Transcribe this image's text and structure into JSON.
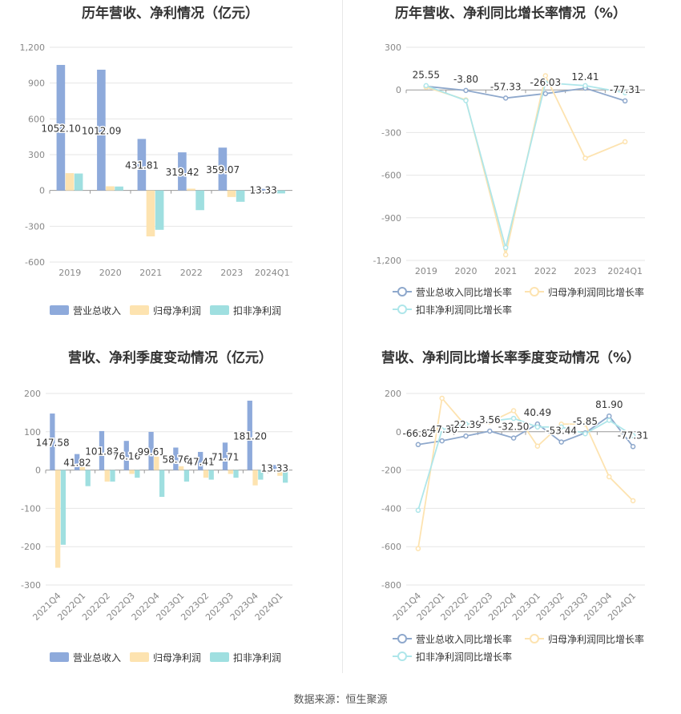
{
  "colors": {
    "revenue": "#8eaadb",
    "netprofit": "#fde3b0",
    "deducted": "#9fdfe0",
    "rev_line": "#8ea8cc",
    "np_line": "#fde3b0",
    "ded_line": "#aee6ea"
  },
  "footer": {
    "source": "数据来源：恒生聚源"
  },
  "chart_data": [
    {
      "id": "annual-amount",
      "type": "bar",
      "title": "历年营收、净利情况（亿元）",
      "categories": [
        "2019",
        "2020",
        "2021",
        "2022",
        "2023",
        "2024Q1"
      ],
      "ylim": [
        -600,
        1200
      ],
      "yticks": [
        1200,
        900,
        600,
        300,
        0,
        -300,
        -600
      ],
      "ytick_labels": [
        "1,200",
        "900",
        "600",
        "300",
        "0",
        "-300",
        "-600"
      ],
      "series": [
        {
          "name": "营业总收入",
          "values": [
            1052.1,
            1012.09,
            431.81,
            319.42,
            359.07,
            13.33
          ]
        },
        {
          "name": "归母净利润",
          "values": [
            145,
            35,
            -385,
            15,
            -55,
            -5
          ]
        },
        {
          "name": "扣非净利润",
          "values": [
            142,
            33,
            -330,
            -165,
            -95,
            -25
          ]
        }
      ],
      "data_labels": [
        "1052.10",
        "1012.09",
        "431.81",
        "319.42",
        "359.07",
        "13.33"
      ]
    },
    {
      "id": "annual-growth",
      "type": "line",
      "title": "历年营收、净利同比增长率情况（%）",
      "categories": [
        "2019",
        "2020",
        "2021",
        "2022",
        "2023",
        "2024Q1"
      ],
      "ylim": [
        -1200,
        300
      ],
      "yticks": [
        300,
        0,
        -300,
        -600,
        -900,
        -1200
      ],
      "ytick_labels": [
        "300",
        "0",
        "-300",
        "-600",
        "-900",
        "-1,200"
      ],
      "series": [
        {
          "name": "营业总收入同比增长率",
          "values": [
            25.55,
            -3.8,
            -57.33,
            -26.03,
            12.41,
            -77.31
          ]
        },
        {
          "name": "归母净利润同比增长率",
          "values": [
            20,
            -70,
            -1160,
            100,
            -480,
            -365
          ]
        },
        {
          "name": "扣非净利润同比增长率",
          "values": [
            30,
            -75,
            -1110,
            50,
            30,
            -20
          ]
        }
      ],
      "data_labels": [
        "25.55",
        "-3.80",
        "-57.33",
        "-26.03",
        "12.41",
        "-77.31"
      ]
    },
    {
      "id": "quarterly-amount",
      "type": "bar",
      "title": "营收、净利季度变动情况（亿元）",
      "categories": [
        "2021Q4",
        "2022Q1",
        "2022Q2",
        "2022Q3",
        "2022Q4",
        "2023Q1",
        "2023Q2",
        "2023Q3",
        "2023Q4",
        "2024Q1"
      ],
      "ylim": [
        -300,
        200
      ],
      "yticks": [
        200,
        100,
        0,
        -100,
        -200,
        -300
      ],
      "ytick_labels": [
        "200",
        "100",
        "0",
        "-100",
        "-200",
        "-300"
      ],
      "series": [
        {
          "name": "营业总收入",
          "values": [
            147.58,
            41.82,
            101.83,
            76.16,
            99.61,
            58.76,
            47.41,
            71.71,
            181.2,
            13.33
          ]
        },
        {
          "name": "归母净利润",
          "values": [
            -255,
            8,
            -30,
            -10,
            35,
            10,
            -20,
            -10,
            -40,
            -15
          ]
        },
        {
          "name": "扣非净利润",
          "values": [
            -195,
            -42,
            -30,
            -20,
            -70,
            -30,
            -25,
            -20,
            -25,
            -33
          ]
        }
      ],
      "data_labels": [
        "147.58",
        "41.82",
        "101.83",
        "76.16",
        "99.61",
        "58.76",
        "47.41",
        "71.71",
        "181.20",
        "13.33"
      ]
    },
    {
      "id": "quarterly-growth",
      "type": "line",
      "title": "营收、净利同比增长率季度变动情况（%）",
      "categories": [
        "2021Q4",
        "2022Q1",
        "2022Q2",
        "2022Q3",
        "2022Q4",
        "2023Q1",
        "2023Q2",
        "2023Q3",
        "2023Q4",
        "2024Q1"
      ],
      "ylim": [
        -800,
        200
      ],
      "yticks": [
        200,
        0,
        -200,
        -400,
        -600,
        -800
      ],
      "ytick_labels": [
        "200",
        "0",
        "-200",
        "-400",
        "-600",
        "-800"
      ],
      "series": [
        {
          "name": "营业总收入同比增长率",
          "values": [
            -66.82,
            -47.3,
            -22.39,
            3.56,
            -32.5,
            40.49,
            -53.44,
            -5.85,
            81.9,
            -77.31
          ]
        },
        {
          "name": "归母净利润同比增长率",
          "values": [
            -610,
            175,
            30,
            50,
            110,
            -75,
            40,
            40,
            -235,
            -360
          ]
        },
        {
          "name": "扣非净利润同比增长率",
          "values": [
            -410,
            10,
            40,
            55,
            70,
            25,
            25,
            -10,
            60,
            -20
          ]
        }
      ],
      "data_labels": [
        "-66.82",
        "-47.30",
        "-22.39",
        "3.56",
        "-32.50",
        "40.49",
        "-53.44",
        "-5.85",
        "81.90",
        "-77.31"
      ]
    }
  ]
}
